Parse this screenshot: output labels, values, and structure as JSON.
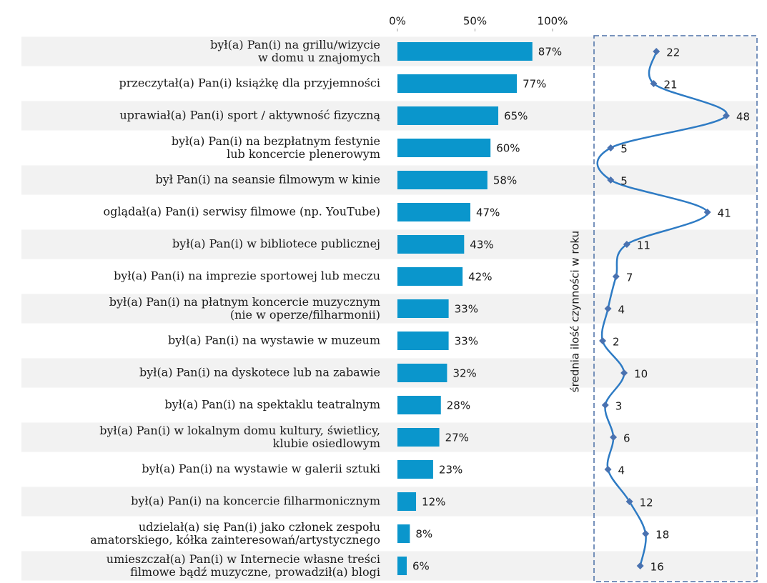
{
  "chart_data": [
    {
      "type": "bar",
      "orientation": "horizontal",
      "color": "#0a96cc",
      "categories": [
        "był(a) Pan(i) na grillu/wizycie\nw domu u znajomych",
        "przeczytał(a) Pan(i) książkę dla przyjemności",
        "uprawiał(a) Pan(i) sport / aktywność fizyczną",
        "był(a) Pan(i) na bezpłatnym festynie\nlub koncercie plenerowym",
        "był Pan(i) na seansie filmowym w kinie",
        "oglądał(a) Pan(i) serwisy filmowe (np. YouTube)",
        "był(a) Pan(i)  w bibliotece publicznej",
        "był(a) Pan(i)  na imprezie sportowej lub meczu",
        "był(a) Pan(i) na płatnym koncercie muzycznym\n(nie w operze/filharmonii)",
        "był(a) Pan(i)  na wystawie w muzeum",
        "był(a) Pan(i) na dyskotece lub na zabawie",
        "był(a) Pan(i)  na spektaklu teatralnym",
        "był(a) Pan(i)  w lokalnym domu kultury, świetlicy,\nklubie osiedlowym",
        "był(a) Pan(i) na wystawie w galerii sztuki",
        "był(a) Pan(i) na koncercie filharmonicznym",
        "udzielał(a) się Pan(i) jako członek zespołu\namatorskiego, kółka zainteresowań/artystycznego",
        "umieszczał(a) Pan(i) w Internecie własne treści\nfilmowe bądź muzyczne, prowadził(a) blogi"
      ],
      "values": [
        87,
        77,
        65,
        60,
        58,
        47,
        43,
        42,
        33,
        33,
        32,
        28,
        27,
        23,
        12,
        8,
        6
      ],
      "value_labels": [
        "87%",
        "77%",
        "65%",
        "60%",
        "58%",
        "47%",
        "43%",
        "42%",
        "33%",
        "33%",
        "32%",
        "28%",
        "27%",
        "23%",
        "12%",
        "8%",
        "6%"
      ],
      "xlim": [
        0,
        100
      ],
      "xticks": [
        {
          "value": 0,
          "label": "0%"
        },
        {
          "value": 50,
          "label": "50%"
        },
        {
          "value": 100,
          "label": "100%"
        }
      ]
    },
    {
      "type": "line",
      "orientation": "vertical",
      "color": "#2e7bc4",
      "marker_color": "#4a72b0",
      "axis_label": "średnia ilość czynności w roku",
      "values": [
        22,
        21,
        48,
        5,
        5,
        41,
        11,
        7,
        4,
        2,
        10,
        3,
        6,
        4,
        12,
        18,
        16
      ],
      "xlim": [
        0,
        50
      ]
    }
  ]
}
